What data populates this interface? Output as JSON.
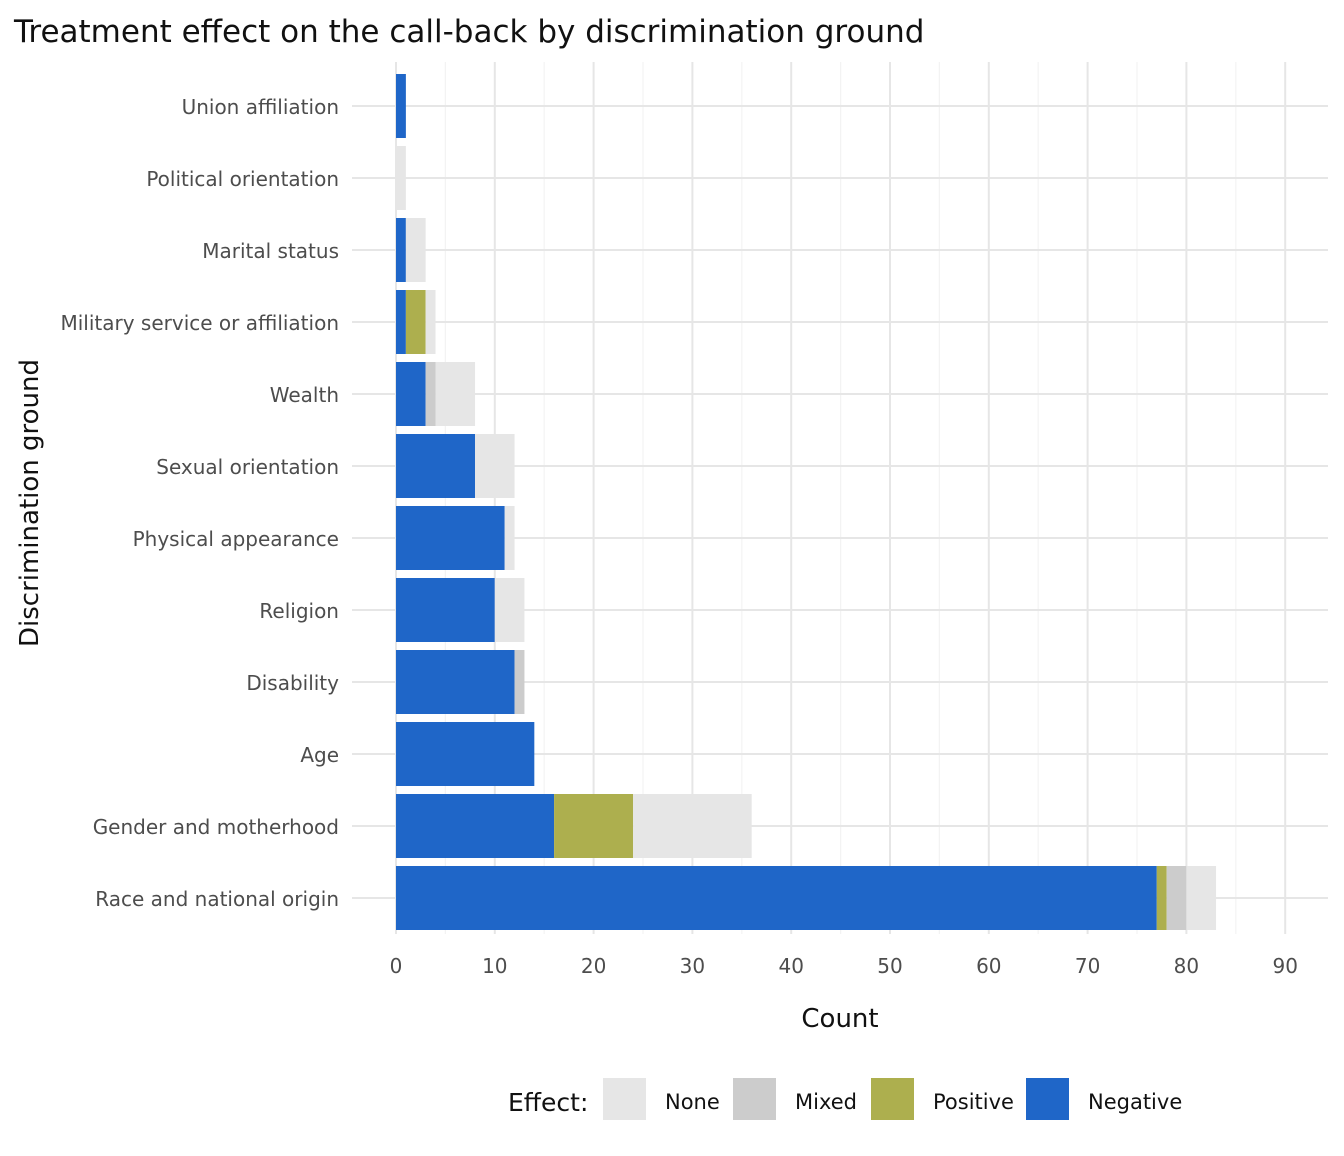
{
  "chart_data": {
    "type": "bar",
    "orientation": "horizontal",
    "stacked": true,
    "title": "Treatment effect on the call-back by discrimination ground",
    "xlabel": "Count",
    "ylabel": "Discrimination ground",
    "xlim": [
      0,
      92
    ],
    "xticks": [
      "0",
      "10",
      "20",
      "30",
      "40",
      "50",
      "60",
      "70",
      "80",
      "90"
    ],
    "grid": true,
    "legend_position": "bottom",
    "legend_title": "Effect:",
    "categories": [
      "Union affiliation",
      "Political orientation",
      "Marital status",
      "Military service or affiliation",
      "Wealth",
      "Sexual orientation",
      "Physical appearance",
      "Religion",
      "Disability",
      "Age",
      "Gender and motherhood",
      "Race and national origin"
    ],
    "series": [
      {
        "name": "Negative",
        "color": "#1f66c8",
        "values": [
          1,
          0,
          1,
          1,
          3,
          8,
          11,
          10,
          12,
          14,
          16,
          77
        ]
      },
      {
        "name": "Positive",
        "color": "#adaf4e",
        "values": [
          0,
          0,
          0,
          2,
          0,
          0,
          0,
          0,
          0,
          0,
          8,
          1
        ]
      },
      {
        "name": "Mixed",
        "color": "#cccccc",
        "values": [
          0,
          0,
          0,
          0,
          1,
          0,
          0,
          0,
          1,
          0,
          0,
          2
        ]
      },
      {
        "name": "None",
        "color": "#e6e6e6",
        "values": [
          0,
          1,
          2,
          1,
          4,
          4,
          1,
          3,
          0,
          0,
          12,
          3
        ]
      }
    ],
    "legend_order": [
      "None",
      "Mixed",
      "Positive",
      "Negative"
    ]
  }
}
